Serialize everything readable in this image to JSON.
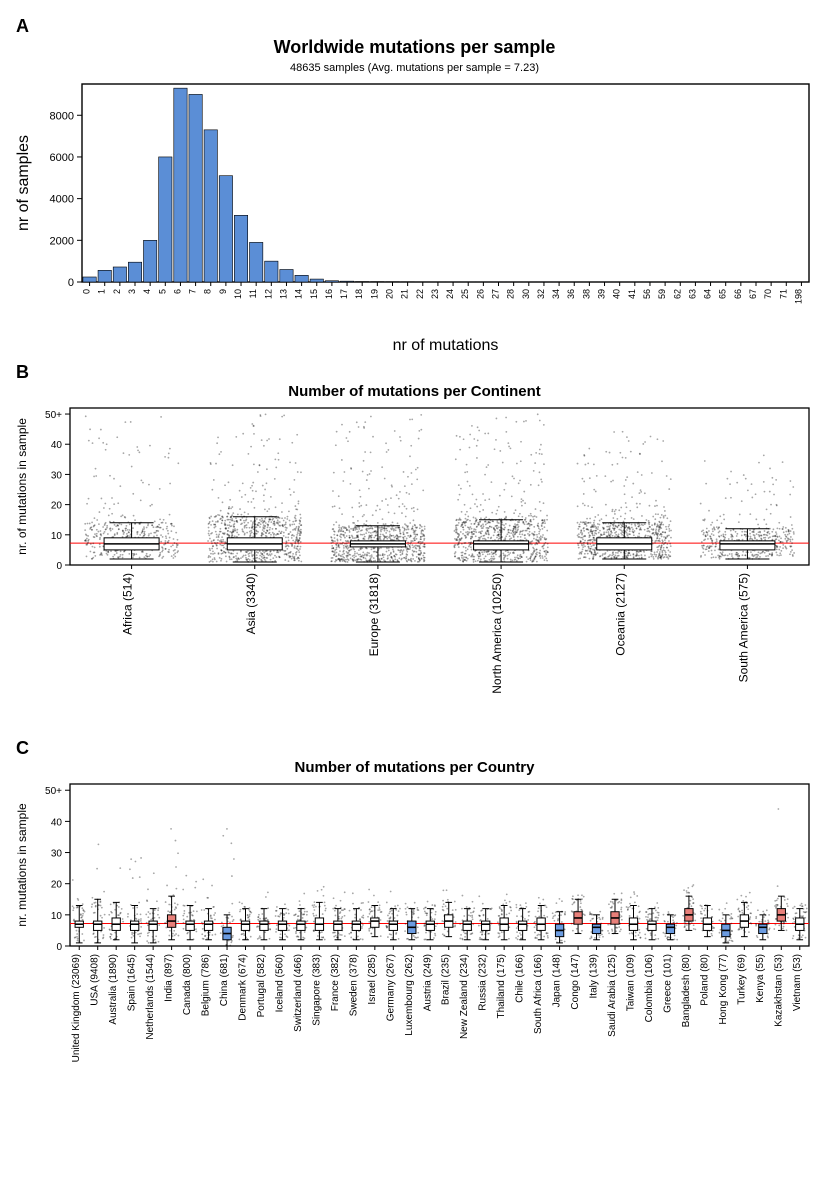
{
  "panelA": {
    "label": "A",
    "title": "Worldwide mutations per sample",
    "subtitle": "48635 samples (Avg. mutations per sample = 7.23)",
    "xlabel": "nr of mutations",
    "ylabel": "nr of samples",
    "type": "histogram",
    "bar_color": "#5b8ed6",
    "bar_border": "#000000",
    "background": "#ffffff",
    "yticks": [
      0,
      2000,
      4000,
      6000,
      8000
    ],
    "ymax": 9500,
    "categories": [
      "0",
      "1",
      "2",
      "3",
      "4",
      "5",
      "6",
      "7",
      "8",
      "9",
      "10",
      "11",
      "12",
      "13",
      "14",
      "15",
      "16",
      "17",
      "18",
      "19",
      "20",
      "21",
      "22",
      "23",
      "24",
      "25",
      "26",
      "27",
      "28",
      "30",
      "32",
      "34",
      "36",
      "38",
      "39",
      "40",
      "41",
      "56",
      "59",
      "62",
      "63",
      "64",
      "65",
      "66",
      "67",
      "70",
      "71",
      "198"
    ],
    "values": [
      240,
      560,
      720,
      950,
      2000,
      6000,
      9300,
      9000,
      7300,
      5100,
      3200,
      1900,
      1000,
      600,
      320,
      140,
      60,
      40,
      20,
      18,
      15,
      12,
      10,
      8,
      6,
      5,
      4,
      3,
      3,
      2,
      2,
      2,
      1,
      1,
      1,
      1,
      1,
      1,
      1,
      1,
      1,
      1,
      1,
      1,
      1,
      1,
      1,
      1
    ]
  },
  "panelB": {
    "label": "B",
    "title": "Number of mutations per Continent",
    "ylabel": "nr. of mutations in sample",
    "type": "boxplot+jitter",
    "ymax": 52,
    "yticks": [
      0,
      10,
      20,
      30,
      40,
      "50+"
    ],
    "ref_line": 7.23,
    "ref_color": "#ff0000",
    "box_fill": "#ffffff",
    "box_border": "#000000",
    "point_color": "rgba(0,0,0,0.35)",
    "categories": [
      {
        "label": "Africa (514)",
        "n": 514,
        "q1": 5,
        "med": 7,
        "q3": 9,
        "lw": 2,
        "uw": 14,
        "out_max": 50
      },
      {
        "label": "Asia (3340)",
        "n": 3340,
        "q1": 5,
        "med": 7,
        "q3": 9,
        "lw": 1,
        "uw": 16,
        "out_max": 50
      },
      {
        "label": "Europe (31818)",
        "n": 31818,
        "q1": 6,
        "med": 7,
        "q3": 8,
        "lw": 1,
        "uw": 13,
        "out_max": 50
      },
      {
        "label": "North America (10250)",
        "n": 10250,
        "q1": 5,
        "med": 7,
        "q3": 8,
        "lw": 1,
        "uw": 15,
        "out_max": 50
      },
      {
        "label": "Oceania (2127)",
        "n": 2127,
        "q1": 5,
        "med": 7,
        "q3": 9,
        "lw": 2,
        "uw": 14,
        "out_max": 45
      },
      {
        "label": "South America (575)",
        "n": 575,
        "q1": 5,
        "med": 7,
        "q3": 8,
        "lw": 2,
        "uw": 12,
        "out_max": 40
      }
    ]
  },
  "panelC": {
    "label": "C",
    "title": "Number of mutations per Country",
    "ylabel": "nr. mutations in sample",
    "type": "boxplot+jitter",
    "ymax": 52,
    "yticks": [
      0,
      10,
      20,
      30,
      40,
      "50+"
    ],
    "ref_line": 7.23,
    "ref_color": "#ff0000",
    "box_border": "#000000",
    "color_default": "#ffffff",
    "color_high": "#e8807a",
    "color_low": "#6b9be0",
    "point_color": "rgba(0,0,0,0.35)",
    "categories": [
      {
        "label": "United Kingdom (23069)",
        "q1": 6,
        "med": 7,
        "q3": 8,
        "lw": 1,
        "uw": 13,
        "out_max": 50,
        "fill": "default"
      },
      {
        "label": "USA (9408)",
        "q1": 5,
        "med": 7,
        "q3": 8,
        "lw": 1,
        "uw": 15,
        "out_max": 50,
        "fill": "default"
      },
      {
        "label": "Australia (1890)",
        "q1": 5,
        "med": 7,
        "q3": 9,
        "lw": 2,
        "uw": 14,
        "out_max": 45,
        "fill": "default"
      },
      {
        "label": "Spain (1645)",
        "q1": 5,
        "med": 7,
        "q3": 8,
        "lw": 1,
        "uw": 13,
        "out_max": 30,
        "fill": "default"
      },
      {
        "label": "Netherlands (1544)",
        "q1": 5,
        "med": 7,
        "q3": 8,
        "lw": 1,
        "uw": 12,
        "out_max": 25,
        "fill": "default"
      },
      {
        "label": "India (897)",
        "q1": 6,
        "med": 8,
        "q3": 10,
        "lw": 2,
        "uw": 16,
        "out_max": 50,
        "fill": "high"
      },
      {
        "label": "Canada (800)",
        "q1": 5,
        "med": 7,
        "q3": 8,
        "lw": 2,
        "uw": 13,
        "out_max": 25,
        "fill": "default"
      },
      {
        "label": "Belgium (786)",
        "q1": 5,
        "med": 7,
        "q3": 8,
        "lw": 2,
        "uw": 12,
        "out_max": 22,
        "fill": "default"
      },
      {
        "label": "China (681)",
        "q1": 2,
        "med": 4,
        "q3": 6,
        "lw": 0,
        "uw": 10,
        "out_max": 50,
        "fill": "low"
      },
      {
        "label": "Denmark (674)",
        "q1": 5,
        "med": 7,
        "q3": 8,
        "lw": 2,
        "uw": 12,
        "out_max": 20,
        "fill": "default"
      },
      {
        "label": "Portugal (582)",
        "q1": 5,
        "med": 7,
        "q3": 8,
        "lw": 2,
        "uw": 12,
        "out_max": 18,
        "fill": "default"
      },
      {
        "label": "Iceland (560)",
        "q1": 5,
        "med": 7,
        "q3": 8,
        "lw": 2,
        "uw": 12,
        "out_max": 18,
        "fill": "default"
      },
      {
        "label": "Switzerland (466)",
        "q1": 5,
        "med": 7,
        "q3": 8,
        "lw": 2,
        "uw": 12,
        "out_max": 18,
        "fill": "default"
      },
      {
        "label": "Singapore (383)",
        "q1": 5,
        "med": 7,
        "q3": 9,
        "lw": 2,
        "uw": 14,
        "out_max": 25,
        "fill": "default"
      },
      {
        "label": "France (382)",
        "q1": 5,
        "med": 7,
        "q3": 8,
        "lw": 2,
        "uw": 12,
        "out_max": 18,
        "fill": "default"
      },
      {
        "label": "Sweden (378)",
        "q1": 5,
        "med": 7,
        "q3": 8,
        "lw": 2,
        "uw": 12,
        "out_max": 18,
        "fill": "default"
      },
      {
        "label": "Israel (285)",
        "q1": 6,
        "med": 8,
        "q3": 9,
        "lw": 3,
        "uw": 13,
        "out_max": 20,
        "fill": "default"
      },
      {
        "label": "Germany (267)",
        "q1": 5,
        "med": 7,
        "q3": 8,
        "lw": 2,
        "uw": 12,
        "out_max": 18,
        "fill": "default"
      },
      {
        "label": "Luxembourg (262)",
        "q1": 4,
        "med": 6,
        "q3": 8,
        "lw": 2,
        "uw": 12,
        "out_max": 18,
        "fill": "low"
      },
      {
        "label": "Austria (249)",
        "q1": 5,
        "med": 7,
        "q3": 8,
        "lw": 2,
        "uw": 12,
        "out_max": 18,
        "fill": "default"
      },
      {
        "label": "Brazil (235)",
        "q1": 6,
        "med": 8,
        "q3": 10,
        "lw": 3,
        "uw": 14,
        "out_max": 18,
        "fill": "default"
      },
      {
        "label": "New Zealand (234)",
        "q1": 5,
        "med": 7,
        "q3": 8,
        "lw": 2,
        "uw": 12,
        "out_max": 18,
        "fill": "default"
      },
      {
        "label": "Russia (232)",
        "q1": 5,
        "med": 7,
        "q3": 8,
        "lw": 2,
        "uw": 12,
        "out_max": 16,
        "fill": "default"
      },
      {
        "label": "Thailand (175)",
        "q1": 5,
        "med": 7,
        "q3": 9,
        "lw": 2,
        "uw": 13,
        "out_max": 18,
        "fill": "default"
      },
      {
        "label": "Chile (166)",
        "q1": 5,
        "med": 7,
        "q3": 8,
        "lw": 2,
        "uw": 12,
        "out_max": 14,
        "fill": "default"
      },
      {
        "label": "South Africa (166)",
        "q1": 5,
        "med": 7,
        "q3": 9,
        "lw": 2,
        "uw": 13,
        "out_max": 16,
        "fill": "default"
      },
      {
        "label": "Japan (148)",
        "q1": 3,
        "med": 5,
        "q3": 7,
        "lw": 1,
        "uw": 11,
        "out_max": 16,
        "fill": "low"
      },
      {
        "label": "Congo (147)",
        "q1": 7,
        "med": 9,
        "q3": 11,
        "lw": 4,
        "uw": 15,
        "out_max": 18,
        "fill": "high"
      },
      {
        "label": "Italy (139)",
        "q1": 4,
        "med": 6,
        "q3": 7,
        "lw": 2,
        "uw": 10,
        "out_max": 14,
        "fill": "low"
      },
      {
        "label": "Saudi Arabia (125)",
        "q1": 7,
        "med": 9,
        "q3": 11,
        "lw": 4,
        "uw": 15,
        "out_max": 20,
        "fill": "high"
      },
      {
        "label": "Taiwan (109)",
        "q1": 5,
        "med": 7,
        "q3": 9,
        "lw": 2,
        "uw": 13,
        "out_max": 18,
        "fill": "default"
      },
      {
        "label": "Colombia (106)",
        "q1": 5,
        "med": 7,
        "q3": 8,
        "lw": 2,
        "uw": 12,
        "out_max": 14,
        "fill": "default"
      },
      {
        "label": "Greece (101)",
        "q1": 4,
        "med": 6,
        "q3": 7,
        "lw": 2,
        "uw": 10,
        "out_max": 12,
        "fill": "low"
      },
      {
        "label": "Bangladesh (80)",
        "q1": 8,
        "med": 10,
        "q3": 12,
        "lw": 5,
        "uw": 16,
        "out_max": 20,
        "fill": "high"
      },
      {
        "label": "Poland (80)",
        "q1": 5,
        "med": 7,
        "q3": 9,
        "lw": 3,
        "uw": 13,
        "out_max": 15,
        "fill": "default"
      },
      {
        "label": "Hong Kong (77)",
        "q1": 3,
        "med": 5,
        "q3": 7,
        "lw": 1,
        "uw": 10,
        "out_max": 14,
        "fill": "low"
      },
      {
        "label": "Turkey (69)",
        "q1": 6,
        "med": 8,
        "q3": 10,
        "lw": 3,
        "uw": 14,
        "out_max": 18,
        "fill": "default"
      },
      {
        "label": "Kenya (55)",
        "q1": 4,
        "med": 6,
        "q3": 7,
        "lw": 2,
        "uw": 10,
        "out_max": 12,
        "fill": "low"
      },
      {
        "label": "Kazakhstan (53)",
        "q1": 8,
        "med": 10,
        "q3": 12,
        "lw": 5,
        "uw": 16,
        "out_max": 50,
        "fill": "high"
      },
      {
        "label": "Vietnam (53)",
        "q1": 5,
        "med": 7,
        "q3": 9,
        "lw": 2,
        "uw": 12,
        "out_max": 14,
        "fill": "default"
      }
    ]
  }
}
